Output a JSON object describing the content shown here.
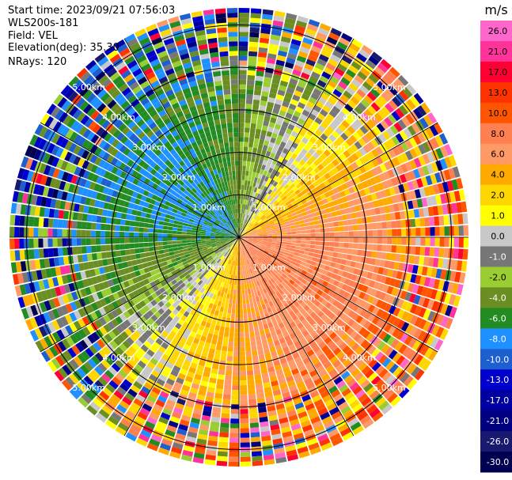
{
  "header": {
    "start_time": "Start time: 2023/09/21 07:56:03",
    "site": "WLS200s-181",
    "field": "Field: VEL",
    "elevation": "Elevation(deg): 35.30",
    "nrays": "NRays: 120"
  },
  "chart_data": {
    "type": "ppi",
    "center_km": [
      0,
      0
    ],
    "max_range_km": 5.4,
    "range_rings_km": [
      1,
      2,
      3,
      4,
      5
    ],
    "range_ring_labels": [
      "1.00km",
      "2.00km",
      "3.00km",
      "4.00km",
      "5.00km"
    ],
    "azimuth_spokes_deg": [
      0,
      30,
      60,
      90,
      120,
      150,
      180,
      210,
      240,
      270,
      300,
      330
    ],
    "nrays": 120,
    "ngates": 48,
    "colorbar": {
      "unit": "m/s",
      "ticks": [
        "26.0",
        "21.0",
        "17.0",
        "13.0",
        "10.0",
        "8.0",
        "6.0",
        "4.0",
        "2.0",
        "1.0",
        "0.0",
        "-1.0",
        "-2.0",
        "-4.0",
        "-6.0",
        "-8.0",
        "-10.0",
        "-13.0",
        "-17.0",
        "-21.0",
        "-26.0",
        "-30.0"
      ],
      "bounds": [
        30,
        26,
        21,
        17,
        13,
        10,
        8,
        6,
        4,
        2,
        1,
        0,
        -1,
        -2,
        -4,
        -6,
        -8,
        -10,
        -13,
        -17,
        -21,
        -26,
        -30
      ],
      "colors": [
        "#ff66cc",
        "#ff3399",
        "#ff0033",
        "#ff3300",
        "#ff5500",
        "#ff7f50",
        "#ff9966",
        "#ffaa00",
        "#ffd700",
        "#ffff00",
        "#c8c8c8",
        "#777777",
        "#9acd32",
        "#6b8e23",
        "#228b22",
        "#1e90ff",
        "#1e5fd0",
        "#0000cd",
        "#0000a0",
        "#000080",
        "#191970",
        "#000050"
      ]
    },
    "wind_pattern": {
      "description_values": "radial velocity approx: positive toward east/southeast (up to ~10 m/s), negative toward west/northwest (-4 to -8 m/s), near zero along NE-SW line; outer gates noisy"
    }
  },
  "colors": {
    "rings": "#000000",
    "labels": "#ffffff",
    "background": "#ffffff"
  }
}
